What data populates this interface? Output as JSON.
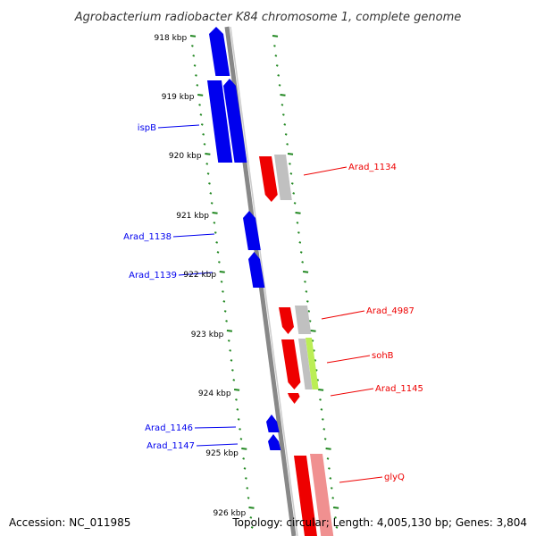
{
  "title": "Agrobacterium radiobacter K84 chromosome 1, complete genome",
  "footer": {
    "accession": "Accession: NC_011985",
    "summary": "Topology: circular; Length: 4,005,130 bp; Genes: 3,804"
  },
  "kbp_ticks": [
    "918 kbp",
    "919 kbp",
    "920 kbp",
    "921 kbp",
    "922 kbp",
    "923 kbp",
    "924 kbp",
    "925 kbp",
    "926 kbp"
  ],
  "genes": {
    "reverse": [
      "ispB",
      "Arad_1138",
      "Arad_1139",
      "Arad_1146",
      "Arad_1147"
    ],
    "forward": [
      "Arad_1134",
      "Arad_4987",
      "sohB",
      "Arad_1145",
      "glyQ"
    ]
  },
  "colors": {
    "reverse_gene": "#0000ee",
    "forward_gene": "#ee0000",
    "homolog_grey": "#c0c0c0",
    "homolog_green": "#bbee55",
    "homolog_pink": "#f09090",
    "backbone": "#888888",
    "tick_green": "#228822"
  }
}
